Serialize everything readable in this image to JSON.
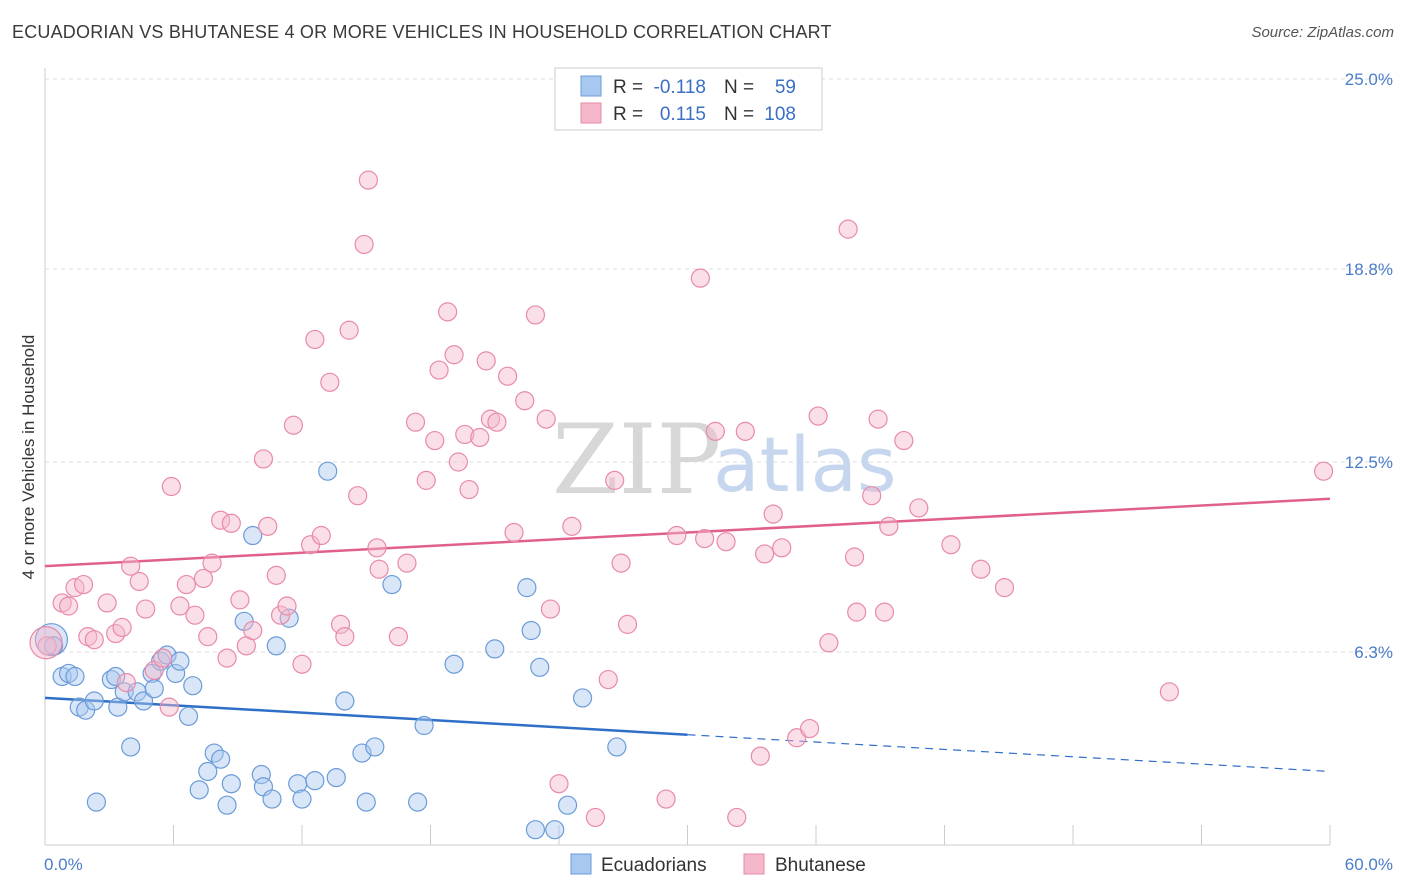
{
  "title": "ECUADORIAN VS BHUTANESE 4 OR MORE VEHICLES IN HOUSEHOLD CORRELATION CHART",
  "source": "Source: ZipAtlas.com",
  "watermark": {
    "zip": "ZIP",
    "atlas": "atlas"
  },
  "legend_box": {
    "rows": [
      {
        "r_label": "R =",
        "r_value": "-0.118",
        "n_label": "N =",
        "n_value": "59",
        "color": "#a9c8f0"
      },
      {
        "r_label": "R =",
        "r_value": "0.115",
        "n_label": "N =",
        "n_value": "108",
        "color": "#f5b8cb"
      }
    ]
  },
  "bottom_legend": [
    {
      "label": "Ecuadorians",
      "color": "#a9c8f0"
    },
    {
      "label": "Bhutanese",
      "color": "#f5b8cb"
    }
  ],
  "chart_data": {
    "type": "scatter",
    "ylabel": "4 or more Vehicles in Household",
    "xlim": [
      0,
      60
    ],
    "ylim": [
      0,
      25
    ],
    "x_tick_labels": [
      {
        "value": 0,
        "label": "0.0%"
      },
      {
        "value": 60,
        "label": "60.0%"
      }
    ],
    "y_tick_labels": [
      {
        "value": 6.3,
        "label": "6.3%"
      },
      {
        "value": 12.5,
        "label": "12.5%"
      },
      {
        "value": 18.8,
        "label": "18.8%"
      },
      {
        "value": 25.0,
        "label": "25.0%"
      }
    ],
    "series": [
      {
        "name": "Ecuadorians",
        "color": "#a9c8f0",
        "stroke": "#6b9bd8",
        "trend": {
          "x0": 0,
          "y0": 4.8,
          "x1": 30,
          "y1": 3.6,
          "dash_x1": 60,
          "dash_y1": 2.4,
          "color": "#2f6fc7"
        },
        "points": [
          [
            0.3,
            6.7
          ],
          [
            0.4,
            6.5
          ],
          [
            0.8,
            5.5
          ],
          [
            1.1,
            5.6
          ],
          [
            1.4,
            5.5
          ],
          [
            1.6,
            4.5
          ],
          [
            1.9,
            4.4
          ],
          [
            2.3,
            4.7
          ],
          [
            2.4,
            1.4
          ],
          [
            3.1,
            5.4
          ],
          [
            3.3,
            5.5
          ],
          [
            3.4,
            4.5
          ],
          [
            3.7,
            5.0
          ],
          [
            4.0,
            3.2
          ],
          [
            4.3,
            5.0
          ],
          [
            4.6,
            4.7
          ],
          [
            5.0,
            5.6
          ],
          [
            5.1,
            5.1
          ],
          [
            5.4,
            6.0
          ],
          [
            5.7,
            6.2
          ],
          [
            6.1,
            5.6
          ],
          [
            6.3,
            6.0
          ],
          [
            6.7,
            4.2
          ],
          [
            6.9,
            5.2
          ],
          [
            7.2,
            1.8
          ],
          [
            7.6,
            2.4
          ],
          [
            7.9,
            3.0
          ],
          [
            8.2,
            2.8
          ],
          [
            8.5,
            1.3
          ],
          [
            8.7,
            2.0
          ],
          [
            9.3,
            7.3
          ],
          [
            9.7,
            10.1
          ],
          [
            10.1,
            2.3
          ],
          [
            10.2,
            1.9
          ],
          [
            10.6,
            1.5
          ],
          [
            10.8,
            6.5
          ],
          [
            11.4,
            7.4
          ],
          [
            11.8,
            2.0
          ],
          [
            12.0,
            1.5
          ],
          [
            12.6,
            2.1
          ],
          [
            13.2,
            12.2
          ],
          [
            13.6,
            2.2
          ],
          [
            14.0,
            4.7
          ],
          [
            14.8,
            3.0
          ],
          [
            15.0,
            1.4
          ],
          [
            15.4,
            3.2
          ],
          [
            16.2,
            8.5
          ],
          [
            17.4,
            1.4
          ],
          [
            17.7,
            3.9
          ],
          [
            19.1,
            5.9
          ],
          [
            21.0,
            6.4
          ],
          [
            22.5,
            8.4
          ],
          [
            22.7,
            7.0
          ],
          [
            23.1,
            5.8
          ],
          [
            22.9,
            0.5
          ],
          [
            23.8,
            0.5
          ],
          [
            24.4,
            1.3
          ],
          [
            25.1,
            4.8
          ],
          [
            26.7,
            3.2
          ]
        ]
      },
      {
        "name": "Bhutanese",
        "color": "#f5b8cb",
        "stroke": "#e88aa8",
        "trend": {
          "x0": 0,
          "y0": 9.1,
          "x1": 60,
          "y1": 11.3,
          "color": "#e0608a"
        },
        "points": [
          [
            0.1,
            6.5
          ],
          [
            0.8,
            7.9
          ],
          [
            1.1,
            7.8
          ],
          [
            1.4,
            8.4
          ],
          [
            1.8,
            8.5
          ],
          [
            2.0,
            6.8
          ],
          [
            2.3,
            6.7
          ],
          [
            2.9,
            7.9
          ],
          [
            3.3,
            6.9
          ],
          [
            3.6,
            7.1
          ],
          [
            3.8,
            5.3
          ],
          [
            4.0,
            9.1
          ],
          [
            4.4,
            8.6
          ],
          [
            4.7,
            7.7
          ],
          [
            5.1,
            5.7
          ],
          [
            5.5,
            6.1
          ],
          [
            5.8,
            4.5
          ],
          [
            5.9,
            11.7
          ],
          [
            6.3,
            7.8
          ],
          [
            6.6,
            8.5
          ],
          [
            7.0,
            7.5
          ],
          [
            7.4,
            8.7
          ],
          [
            7.6,
            6.8
          ],
          [
            7.8,
            9.2
          ],
          [
            8.2,
            10.6
          ],
          [
            8.5,
            6.1
          ],
          [
            8.7,
            10.5
          ],
          [
            9.1,
            8.0
          ],
          [
            9.4,
            6.5
          ],
          [
            9.7,
            7.0
          ],
          [
            10.2,
            12.6
          ],
          [
            10.4,
            10.4
          ],
          [
            10.8,
            8.8
          ],
          [
            11.0,
            7.5
          ],
          [
            11.3,
            7.8
          ],
          [
            11.6,
            13.7
          ],
          [
            12.0,
            5.9
          ],
          [
            12.4,
            9.8
          ],
          [
            12.6,
            16.5
          ],
          [
            12.9,
            10.1
          ],
          [
            13.3,
            15.1
          ],
          [
            13.8,
            7.2
          ],
          [
            14.0,
            6.8
          ],
          [
            14.2,
            16.8
          ],
          [
            14.6,
            11.4
          ],
          [
            14.9,
            19.6
          ],
          [
            15.1,
            21.7
          ],
          [
            15.5,
            9.7
          ],
          [
            15.6,
            9.0
          ],
          [
            16.5,
            6.8
          ],
          [
            16.9,
            9.2
          ],
          [
            17.3,
            13.8
          ],
          [
            17.8,
            11.9
          ],
          [
            18.2,
            13.2
          ],
          [
            18.4,
            15.5
          ],
          [
            18.8,
            17.4
          ],
          [
            19.1,
            16.0
          ],
          [
            19.3,
            12.5
          ],
          [
            19.6,
            13.4
          ],
          [
            19.8,
            11.6
          ],
          [
            20.3,
            13.3
          ],
          [
            20.6,
            15.8
          ],
          [
            20.8,
            13.9
          ],
          [
            21.1,
            13.8
          ],
          [
            21.6,
            15.3
          ],
          [
            21.9,
            10.2
          ],
          [
            22.4,
            14.5
          ],
          [
            22.9,
            17.3
          ],
          [
            23.4,
            13.9
          ],
          [
            23.6,
            7.7
          ],
          [
            24.0,
            2.0
          ],
          [
            24.6,
            10.4
          ],
          [
            25.7,
            0.9
          ],
          [
            26.3,
            5.4
          ],
          [
            26.6,
            11.9
          ],
          [
            26.9,
            9.2
          ],
          [
            27.2,
            7.2
          ],
          [
            29.0,
            1.5
          ],
          [
            29.5,
            10.1
          ],
          [
            30.6,
            18.5
          ],
          [
            30.8,
            10.0
          ],
          [
            31.3,
            13.5
          ],
          [
            31.8,
            9.9
          ],
          [
            32.3,
            0.9
          ],
          [
            32.7,
            13.5
          ],
          [
            33.4,
            2.9
          ],
          [
            33.6,
            9.5
          ],
          [
            34.0,
            10.8
          ],
          [
            34.4,
            9.7
          ],
          [
            35.1,
            3.5
          ],
          [
            35.7,
            3.8
          ],
          [
            36.1,
            14.0
          ],
          [
            36.6,
            6.6
          ],
          [
            37.5,
            20.1
          ],
          [
            37.8,
            9.4
          ],
          [
            37.9,
            7.6
          ],
          [
            38.6,
            11.4
          ],
          [
            38.9,
            13.9
          ],
          [
            39.2,
            7.6
          ],
          [
            39.4,
            10.4
          ],
          [
            40.1,
            13.2
          ],
          [
            40.8,
            11.0
          ],
          [
            42.3,
            9.8
          ],
          [
            43.7,
            9.0
          ],
          [
            44.8,
            8.4
          ],
          [
            52.5,
            5.0
          ],
          [
            59.7,
            12.2
          ],
          [
            0.05,
            6.6
          ]
        ]
      }
    ]
  }
}
